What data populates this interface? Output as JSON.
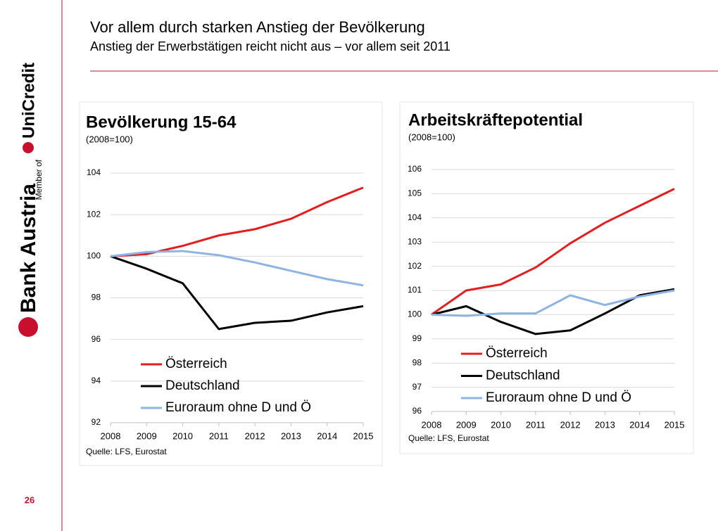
{
  "slide": {
    "title": "Vor allem durch starken Anstieg der Bevölkerung",
    "subtitle": "Anstieg der Erwerbstätigen reicht nicht aus – vor allem seit 2011",
    "page": "26",
    "logo": {
      "brand": "Bank Austria",
      "member": "Member of",
      "group": "UniCredit"
    }
  },
  "chart_data": [
    {
      "type": "line",
      "title": "Bevölkerung 15-64",
      "subtitle": "(2008=100)",
      "source": "Quelle: LFS, Eurostat",
      "categories": [
        "2008",
        "2009",
        "2010",
        "2011",
        "2012",
        "2013",
        "2014",
        "2015"
      ],
      "ylim": [
        92,
        104
      ],
      "yticks": [
        92,
        94,
        96,
        98,
        100,
        102,
        104
      ],
      "grid": true,
      "legend": "lower right",
      "series": [
        {
          "name": "Österreich",
          "color": "#e41e1e",
          "values": [
            100,
            100.1,
            100.5,
            101.0,
            101.3,
            101.8,
            102.6,
            103.3
          ]
        },
        {
          "name": "Deutschland",
          "color": "#000000",
          "values": [
            100,
            99.4,
            98.7,
            96.5,
            96.8,
            96.9,
            97.3,
            97.6
          ]
        },
        {
          "name": "Euroraum ohne D und Ö",
          "color": "#8db4e2",
          "values": [
            100,
            100.2,
            100.25,
            100.05,
            99.7,
            99.3,
            98.9,
            98.6
          ]
        }
      ]
    },
    {
      "type": "line",
      "title": "Arbeitskräftepotential",
      "subtitle": "(2008=100)",
      "source": "Quelle: LFS, Eurostat",
      "categories": [
        "2008",
        "2009",
        "2010",
        "2011",
        "2012",
        "2013",
        "2014",
        "2015"
      ],
      "ylim": [
        96,
        106
      ],
      "yticks": [
        96,
        97,
        98,
        99,
        100,
        101,
        102,
        103,
        104,
        105,
        106
      ],
      "grid": true,
      "legend": "lower right",
      "series": [
        {
          "name": "Österreich",
          "color": "#e41e1e",
          "values": [
            100,
            101.0,
            101.25,
            101.95,
            102.95,
            103.8,
            104.5,
            105.2
          ]
        },
        {
          "name": "Deutschland",
          "color": "#000000",
          "values": [
            100,
            100.35,
            99.7,
            99.2,
            99.35,
            100.05,
            100.8,
            101.05
          ]
        },
        {
          "name": "Euroraum ohne D und Ö",
          "color": "#8db4e2",
          "values": [
            100,
            99.95,
            100.05,
            100.05,
            100.8,
            100.4,
            100.75,
            101.0
          ]
        }
      ]
    }
  ]
}
